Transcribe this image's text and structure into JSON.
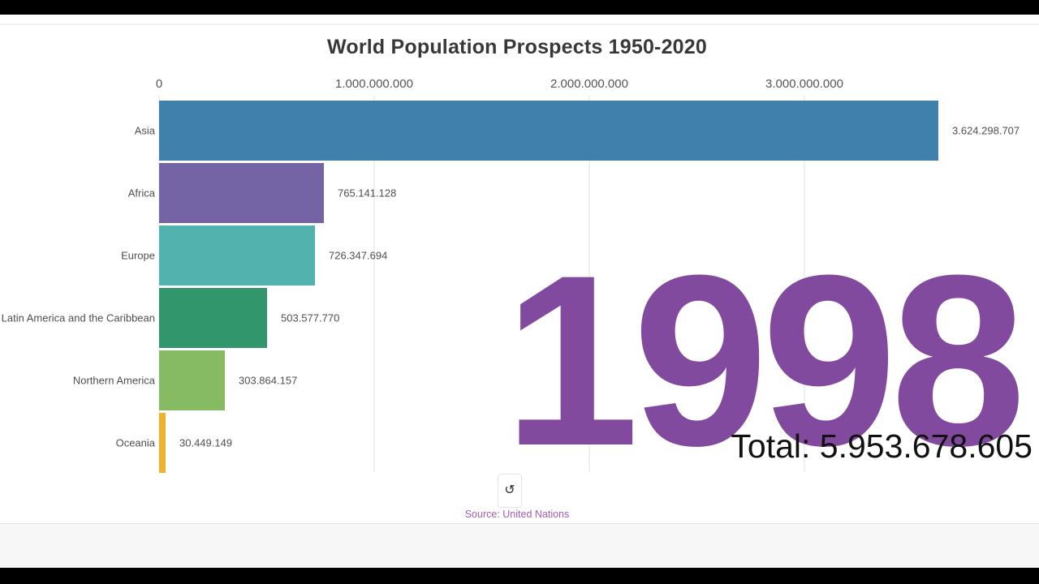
{
  "title": "World Population Prospects 1950-2020",
  "year_label": "1998",
  "total_label": "Total: 5.953.678.605",
  "source": "Source: United Nations",
  "replay_icon": "↺",
  "colors": {
    "title_text": "#383838",
    "year_text": "#824a9e",
    "total_text": "#111111",
    "source_text": "#a05eb5",
    "axis_text": "#565656",
    "label_text": "#4f4f4f",
    "gridline": "#f0f0f0"
  },
  "chart_data": {
    "type": "bar",
    "orientation": "horizontal",
    "title": "World Population Prospects 1950-2020",
    "categories": [
      "Asia",
      "Africa",
      "Europe",
      "Latin America and the Caribbean",
      "Northern America",
      "Oceania"
    ],
    "values": [
      3624298707,
      765141128,
      726347694,
      503577770,
      303864157,
      30449149
    ],
    "value_labels": [
      "3.624.298.707",
      "765.141.128",
      "726.347.694",
      "503.577.770",
      "303.864.157",
      "30.449.149"
    ],
    "bar_colors": [
      "#4080ad",
      "#7463a5",
      "#52b3ae",
      "#31966b",
      "#86bb63",
      "#ecb32e"
    ],
    "x_ticks": [
      {
        "label": "0",
        "value": 0
      },
      {
        "label": "1.000.000.000",
        "value": 1000000000
      },
      {
        "label": "2.000.000.000",
        "value": 2000000000
      },
      {
        "label": "3.000.000.000",
        "value": 3000000000
      }
    ],
    "xlim": [
      0,
      3700000000
    ],
    "grid": true,
    "legend": false
  }
}
